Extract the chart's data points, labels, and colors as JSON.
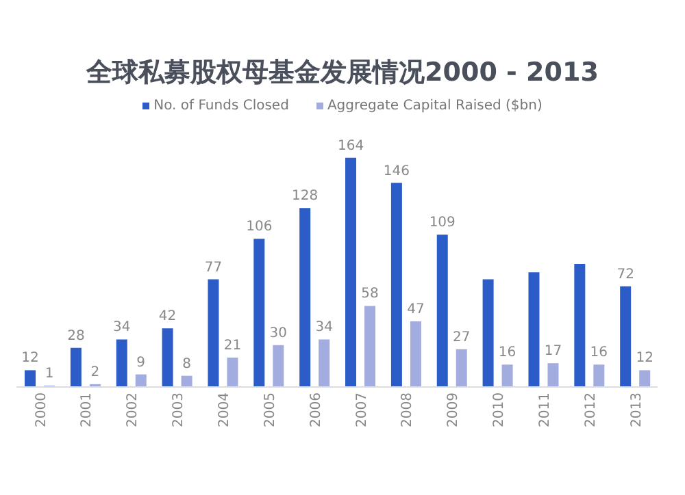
{
  "chart_data": {
    "type": "bar",
    "title": "全球私募股权母基金发展情况2000 - 2013",
    "categories": [
      "2000",
      "2001",
      "2002",
      "2003",
      "2004",
      "2005",
      "2006",
      "2007",
      "2008",
      "2009",
      "2010",
      "2011",
      "2012",
      "2013"
    ],
    "series": [
      {
        "name": "No. of Funds Closed",
        "color": "#2b5cc8",
        "values": [
          12,
          28,
          34,
          42,
          77,
          106,
          128,
          164,
          146,
          109,
          77,
          82,
          88,
          72
        ],
        "value_labels": [
          "12",
          "28",
          "34",
          "42",
          "77",
          "106",
          "128",
          "164",
          "146",
          "109",
          null,
          null,
          null,
          "72"
        ]
      },
      {
        "name": "Aggregate Capital Raised ($bn)",
        "color": "#a3acdf",
        "values": [
          1,
          2,
          9,
          8,
          21,
          30,
          34,
          58,
          47,
          27,
          16,
          17,
          16,
          12
        ],
        "value_labels": [
          "1",
          "2",
          "9",
          "8",
          "21",
          "30",
          "34",
          "58",
          "47",
          "27",
          "16",
          "17",
          "16",
          "12"
        ]
      }
    ],
    "tick_labels": "x",
    "legend": "top"
  }
}
